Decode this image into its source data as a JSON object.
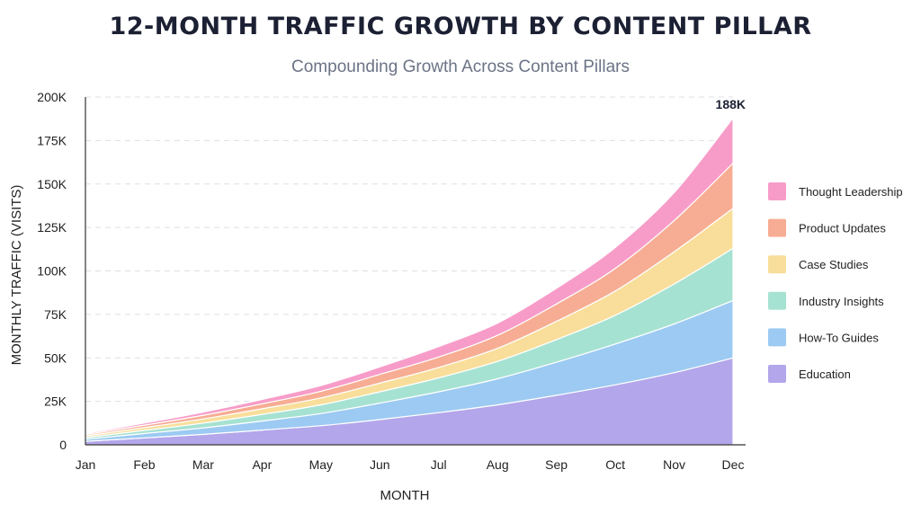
{
  "chart_data": {
    "type": "area",
    "stacked": true,
    "title": "12-MONTH TRAFFIC GROWTH BY CONTENT PILLAR",
    "subtitle": "Compounding Growth Across Content Pillars",
    "xlabel": "MONTH",
    "ylabel": "MONTHLY TRAFFIC (VISITS)",
    "categories": [
      "Jan",
      "Feb",
      "Mar",
      "Apr",
      "May",
      "Jun",
      "Jul",
      "Aug",
      "Sep",
      "Oct",
      "Nov",
      "Dec"
    ],
    "ylim": [
      0,
      200000
    ],
    "yticks": [
      0,
      25000,
      50000,
      75000,
      100000,
      125000,
      150000,
      175000,
      200000
    ],
    "ytick_labels": [
      "0",
      "25K",
      "50K",
      "75K",
      "100K",
      "125K",
      "150K",
      "175K",
      "200K"
    ],
    "grid": "horizontal-dashed",
    "legend_position": "right",
    "series": [
      {
        "name": "Education",
        "color": "#b3a6ea",
        "values": [
          2000,
          4000,
          6000,
          8500,
          11000,
          14500,
          18500,
          23000,
          28500,
          34500,
          41500,
          50000
        ]
      },
      {
        "name": "How-To Guides",
        "color": "#9ccaf2",
        "values": [
          1200,
          2500,
          3700,
          5200,
          7000,
          9500,
          12000,
          15000,
          19000,
          23500,
          28000,
          33000
        ]
      },
      {
        "name": "Industry Insights",
        "color": "#a6e2d2",
        "values": [
          1000,
          1800,
          2800,
          3800,
          5000,
          6500,
          8000,
          10000,
          13000,
          16500,
          23000,
          30000
        ]
      },
      {
        "name": "Case Studies",
        "color": "#f8de9a",
        "values": [
          900,
          1600,
          2400,
          3200,
          4000,
          5000,
          6000,
          7500,
          10500,
          14000,
          18500,
          23000
        ]
      },
      {
        "name": "Product Updates",
        "color": "#f7ad93",
        "values": [
          800,
          1400,
          2100,
          2900,
          3800,
          5000,
          6000,
          7500,
          10000,
          13000,
          18000,
          26000
        ]
      },
      {
        "name": "Thought Leadership",
        "color": "#f79cc8",
        "values": [
          600,
          1200,
          1800,
          2500,
          3300,
          4300,
          6000,
          7000,
          9000,
          12000,
          16000,
          26000
        ]
      }
    ],
    "legend_order": [
      "Thought Leadership",
      "Product Updates",
      "Case Studies",
      "Industry Insights",
      "How-To Guides",
      "Education"
    ],
    "annotation": {
      "text": "188K",
      "category": "Dec",
      "value": 188000
    }
  }
}
